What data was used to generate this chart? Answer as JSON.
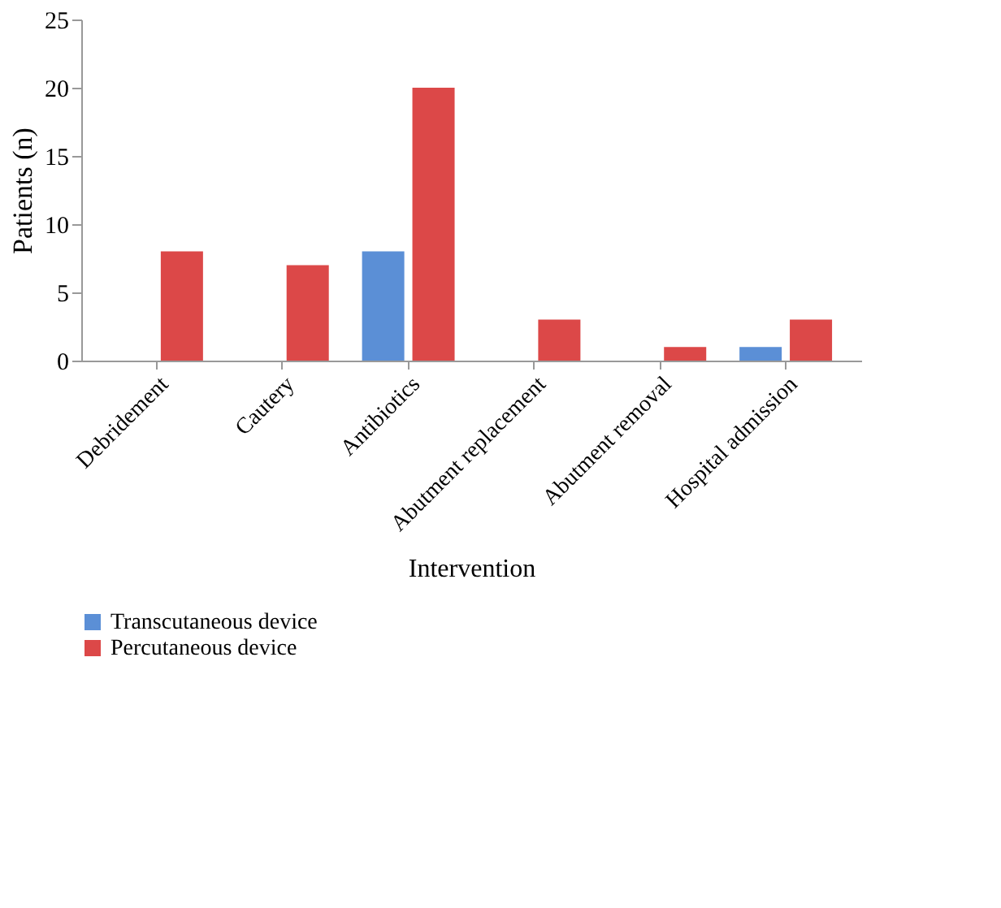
{
  "chart_data": {
    "type": "bar",
    "xlabel": "Intervention",
    "ylabel": "Patients (n)",
    "categories": [
      "Debridement",
      "Cautery",
      "Antibiotics",
      "Abutment replacement",
      "Abutment removal",
      "Hospital admission"
    ],
    "series": [
      {
        "name": "Transcutaneous device",
        "color": "#5b8fd6",
        "values": [
          0,
          0,
          8,
          0,
          0,
          1
        ]
      },
      {
        "name": "Percutaneous device",
        "color": "#dc4848",
        "values": [
          8,
          7,
          20,
          3,
          1,
          3
        ]
      }
    ],
    "ylim": [
      0,
      25
    ],
    "yticks": [
      0,
      5,
      10,
      15,
      20,
      25
    ],
    "grid": false,
    "legend": "bottom"
  }
}
